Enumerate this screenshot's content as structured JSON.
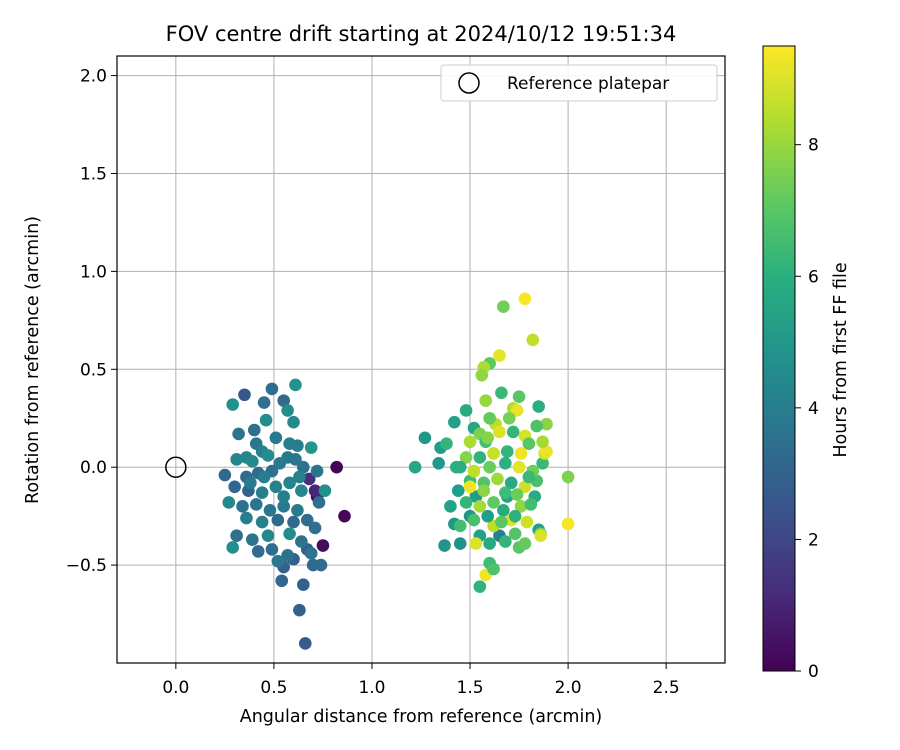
{
  "chart_data": {
    "type": "scatter",
    "title": "FOV centre drift starting at 2024/10/12 19:51:34",
    "xlabel": "Angular distance from reference (arcmin)",
    "ylabel": "Rotation from reference (arcmin)",
    "xlim": [
      -0.3,
      2.8
    ],
    "ylim": [
      -1.0,
      2.1
    ],
    "xticks": [
      "0.0",
      "0.5",
      "1.0",
      "1.5",
      "2.0",
      "2.5"
    ],
    "yticks": [
      "−0.5",
      "0.0",
      "0.5",
      "1.0",
      "1.5",
      "2.0"
    ],
    "grid": true,
    "legend": {
      "label": "Reference platepar",
      "placement": "top-right"
    },
    "reference_point": {
      "x": 0.0,
      "y": 0.0
    },
    "colorbar": {
      "label": "Hours from first FF file",
      "range": [
        0,
        9.5
      ],
      "ticks": [
        "0",
        "2",
        "4",
        "6",
        "8"
      ],
      "colormap": "viridis"
    },
    "points": [
      {
        "x": 0.82,
        "y": 0.0,
        "t": 0.1
      },
      {
        "x": 0.86,
        "y": -0.25,
        "t": 0.2
      },
      {
        "x": 0.75,
        "y": -0.4,
        "t": 0.3
      },
      {
        "x": 0.72,
        "y": -0.15,
        "t": 0.4
      },
      {
        "x": 0.71,
        "y": -0.12,
        "t": 1.0
      },
      {
        "x": 0.68,
        "y": -0.06,
        "t": 1.3
      },
      {
        "x": 0.66,
        "y": -0.9,
        "t": 2.7
      },
      {
        "x": 0.63,
        "y": -0.73,
        "t": 2.9
      },
      {
        "x": 0.65,
        "y": -0.6,
        "t": 3.0
      },
      {
        "x": 0.54,
        "y": -0.58,
        "t": 3.1
      },
      {
        "x": 0.55,
        "y": -0.51,
        "t": 3.0
      },
      {
        "x": 0.6,
        "y": -0.47,
        "t": 2.9
      },
      {
        "x": 0.67,
        "y": -0.42,
        "t": 2.8
      },
      {
        "x": 0.7,
        "y": -0.5,
        "t": 3.2
      },
      {
        "x": 0.74,
        "y": -0.5,
        "t": 3.3
      },
      {
        "x": 0.71,
        "y": -0.31,
        "t": 3.4
      },
      {
        "x": 0.73,
        "y": -0.18,
        "t": 3.5
      },
      {
        "x": 0.72,
        "y": -0.02,
        "t": 3.6
      },
      {
        "x": 0.76,
        "y": -0.12,
        "t": 4.8
      },
      {
        "x": 0.69,
        "y": 0.1,
        "t": 5.0
      },
      {
        "x": 0.61,
        "y": 0.42,
        "t": 4.9
      },
      {
        "x": 0.55,
        "y": 0.34,
        "t": 3.3
      },
      {
        "x": 0.49,
        "y": 0.4,
        "t": 3.4
      },
      {
        "x": 0.45,
        "y": 0.33,
        "t": 3.5
      },
      {
        "x": 0.35,
        "y": 0.37,
        "t": 2.6
      },
      {
        "x": 0.29,
        "y": 0.32,
        "t": 4.8
      },
      {
        "x": 0.57,
        "y": 0.29,
        "t": 4.6
      },
      {
        "x": 0.6,
        "y": 0.23,
        "t": 4.5
      },
      {
        "x": 0.46,
        "y": 0.24,
        "t": 4.6
      },
      {
        "x": 0.4,
        "y": 0.19,
        "t": 3.5
      },
      {
        "x": 0.32,
        "y": 0.17,
        "t": 3.6
      },
      {
        "x": 0.41,
        "y": 0.12,
        "t": 3.7
      },
      {
        "x": 0.51,
        "y": 0.15,
        "t": 3.8
      },
      {
        "x": 0.58,
        "y": 0.12,
        "t": 4.0
      },
      {
        "x": 0.62,
        "y": 0.11,
        "t": 4.1
      },
      {
        "x": 0.44,
        "y": 0.08,
        "t": 4.2
      },
      {
        "x": 0.36,
        "y": 0.05,
        "t": 4.3
      },
      {
        "x": 0.31,
        "y": 0.04,
        "t": 4.4
      },
      {
        "x": 0.39,
        "y": 0.03,
        "t": 4.5
      },
      {
        "x": 0.47,
        "y": 0.06,
        "t": 4.6
      },
      {
        "x": 0.53,
        "y": 0.02,
        "t": 3.9
      },
      {
        "x": 0.57,
        "y": 0.05,
        "t": 3.8
      },
      {
        "x": 0.61,
        "y": 0.04,
        "t": 3.7
      },
      {
        "x": 0.65,
        "y": 0.0,
        "t": 3.6
      },
      {
        "x": 0.49,
        "y": -0.02,
        "t": 3.5
      },
      {
        "x": 0.42,
        "y": -0.03,
        "t": 3.4
      },
      {
        "x": 0.36,
        "y": -0.05,
        "t": 3.3
      },
      {
        "x": 0.25,
        "y": -0.04,
        "t": 3.2
      },
      {
        "x": 0.3,
        "y": -0.1,
        "t": 3.1
      },
      {
        "x": 0.37,
        "y": -0.12,
        "t": 3.0
      },
      {
        "x": 0.44,
        "y": -0.13,
        "t": 4.1
      },
      {
        "x": 0.51,
        "y": -0.1,
        "t": 4.2
      },
      {
        "x": 0.58,
        "y": -0.08,
        "t": 4.3
      },
      {
        "x": 0.64,
        "y": -0.12,
        "t": 4.4
      },
      {
        "x": 0.27,
        "y": -0.18,
        "t": 4.5
      },
      {
        "x": 0.34,
        "y": -0.2,
        "t": 3.5
      },
      {
        "x": 0.41,
        "y": -0.19,
        "t": 3.6
      },
      {
        "x": 0.48,
        "y": -0.22,
        "t": 3.7
      },
      {
        "x": 0.55,
        "y": -0.2,
        "t": 3.8
      },
      {
        "x": 0.62,
        "y": -0.22,
        "t": 3.9
      },
      {
        "x": 0.36,
        "y": -0.26,
        "t": 4.0
      },
      {
        "x": 0.44,
        "y": -0.28,
        "t": 4.1
      },
      {
        "x": 0.52,
        "y": -0.27,
        "t": 3.2
      },
      {
        "x": 0.6,
        "y": -0.28,
        "t": 3.3
      },
      {
        "x": 0.67,
        "y": -0.27,
        "t": 3.4
      },
      {
        "x": 0.31,
        "y": -0.35,
        "t": 3.5
      },
      {
        "x": 0.39,
        "y": -0.37,
        "t": 3.6
      },
      {
        "x": 0.47,
        "y": -0.35,
        "t": 4.5
      },
      {
        "x": 0.58,
        "y": -0.34,
        "t": 4.6
      },
      {
        "x": 0.29,
        "y": -0.41,
        "t": 4.7
      },
      {
        "x": 0.42,
        "y": -0.43,
        "t": 3.3
      },
      {
        "x": 0.49,
        "y": -0.42,
        "t": 3.4
      },
      {
        "x": 0.57,
        "y": -0.45,
        "t": 3.5
      },
      {
        "x": 0.64,
        "y": -0.38,
        "t": 3.6
      },
      {
        "x": 0.69,
        "y": -0.44,
        "t": 3.7
      },
      {
        "x": 0.52,
        "y": -0.48,
        "t": 3.8
      },
      {
        "x": 0.38,
        "y": -0.08,
        "t": 3.9
      },
      {
        "x": 0.45,
        "y": -0.05,
        "t": 4.0
      },
      {
        "x": 0.55,
        "y": -0.15,
        "t": 4.1
      },
      {
        "x": 0.63,
        "y": -0.05,
        "t": 4.2
      },
      {
        "x": 1.22,
        "y": 0.0,
        "t": 5.6
      },
      {
        "x": 1.27,
        "y": 0.15,
        "t": 5.0
      },
      {
        "x": 1.35,
        "y": 0.1,
        "t": 5.2
      },
      {
        "x": 1.38,
        "y": 0.12,
        "t": 6.2
      },
      {
        "x": 1.42,
        "y": 0.23,
        "t": 5.4
      },
      {
        "x": 1.48,
        "y": 0.29,
        "t": 5.8
      },
      {
        "x": 1.34,
        "y": 0.02,
        "t": 5.1
      },
      {
        "x": 1.43,
        "y": 0.0,
        "t": 6.0
      },
      {
        "x": 1.37,
        "y": -0.4,
        "t": 4.9
      },
      {
        "x": 1.45,
        "y": -0.39,
        "t": 4.8
      },
      {
        "x": 1.42,
        "y": -0.29,
        "t": 5.0
      },
      {
        "x": 1.4,
        "y": -0.2,
        "t": 5.5
      },
      {
        "x": 1.44,
        "y": -0.12,
        "t": 5.3
      },
      {
        "x": 1.5,
        "y": -0.07,
        "t": 6.5
      },
      {
        "x": 1.53,
        "y": -0.15,
        "t": 5.2
      },
      {
        "x": 1.5,
        "y": -0.25,
        "t": 5.0
      },
      {
        "x": 1.55,
        "y": -0.35,
        "t": 5.4
      },
      {
        "x": 1.55,
        "y": -0.61,
        "t": 6.1
      },
      {
        "x": 1.58,
        "y": -0.55,
        "t": 9.3
      },
      {
        "x": 1.6,
        "y": -0.49,
        "t": 6.5
      },
      {
        "x": 1.62,
        "y": -0.52,
        "t": 6.8
      },
      {
        "x": 1.6,
        "y": -0.39,
        "t": 5.7
      },
      {
        "x": 1.65,
        "y": -0.35,
        "t": 4.2
      },
      {
        "x": 1.62,
        "y": -0.3,
        "t": 8.5
      },
      {
        "x": 1.67,
        "y": -0.22,
        "t": 5.8
      },
      {
        "x": 1.71,
        "y": -0.27,
        "t": 9.0
      },
      {
        "x": 1.73,
        "y": -0.34,
        "t": 6.9
      },
      {
        "x": 1.75,
        "y": -0.41,
        "t": 7.0
      },
      {
        "x": 1.78,
        "y": -0.39,
        "t": 7.2
      },
      {
        "x": 1.79,
        "y": -0.28,
        "t": 8.8
      },
      {
        "x": 1.85,
        "y": -0.32,
        "t": 5.4
      },
      {
        "x": 1.86,
        "y": -0.34,
        "t": 7.5
      },
      {
        "x": 1.86,
        "y": -0.35,
        "t": 9.0
      },
      {
        "x": 2.0,
        "y": -0.29,
        "t": 9.4
      },
      {
        "x": 2.0,
        "y": -0.05,
        "t": 7.6
      },
      {
        "x": 1.83,
        "y": -0.15,
        "t": 5.8
      },
      {
        "x": 1.84,
        "y": -0.07,
        "t": 6.7
      },
      {
        "x": 1.87,
        "y": 0.02,
        "t": 6.4
      },
      {
        "x": 1.88,
        "y": 0.07,
        "t": 8.9
      },
      {
        "x": 1.89,
        "y": 0.08,
        "t": 9.2
      },
      {
        "x": 1.87,
        "y": 0.13,
        "t": 8.2
      },
      {
        "x": 1.85,
        "y": 0.31,
        "t": 5.9
      },
      {
        "x": 1.89,
        "y": 0.22,
        "t": 7.8
      },
      {
        "x": 1.82,
        "y": 0.65,
        "t": 8.6
      },
      {
        "x": 1.78,
        "y": 0.86,
        "t": 9.4
      },
      {
        "x": 1.67,
        "y": 0.82,
        "t": 7.4
      },
      {
        "x": 1.65,
        "y": 0.57,
        "t": 9.1
      },
      {
        "x": 1.6,
        "y": 0.53,
        "t": 7.1
      },
      {
        "x": 1.57,
        "y": 0.51,
        "t": 8.3
      },
      {
        "x": 1.56,
        "y": 0.47,
        "t": 7.9
      },
      {
        "x": 1.58,
        "y": 0.34,
        "t": 8.0
      },
      {
        "x": 1.75,
        "y": 0.36,
        "t": 7.0
      },
      {
        "x": 1.72,
        "y": 0.3,
        "t": 8.4
      },
      {
        "x": 1.74,
        "y": 0.29,
        "t": 9.2
      },
      {
        "x": 1.7,
        "y": 0.25,
        "t": 7.5
      },
      {
        "x": 1.63,
        "y": 0.22,
        "t": 8.5
      },
      {
        "x": 1.6,
        "y": 0.25,
        "t": 7.2
      },
      {
        "x": 1.52,
        "y": 0.2,
        "t": 5.6
      },
      {
        "x": 1.55,
        "y": 0.17,
        "t": 7.6
      },
      {
        "x": 1.5,
        "y": 0.13,
        "t": 8.3
      },
      {
        "x": 1.58,
        "y": 0.13,
        "t": 6.6
      },
      {
        "x": 1.65,
        "y": 0.18,
        "t": 9.0
      },
      {
        "x": 1.72,
        "y": 0.18,
        "t": 6.3
      },
      {
        "x": 1.78,
        "y": 0.16,
        "t": 8.9
      },
      {
        "x": 1.8,
        "y": 0.12,
        "t": 7.0
      },
      {
        "x": 1.76,
        "y": 0.07,
        "t": 9.3
      },
      {
        "x": 1.69,
        "y": 0.08,
        "t": 6.2
      },
      {
        "x": 1.62,
        "y": 0.07,
        "t": 8.7
      },
      {
        "x": 1.55,
        "y": 0.05,
        "t": 6.1
      },
      {
        "x": 1.48,
        "y": 0.05,
        "t": 7.7
      },
      {
        "x": 1.45,
        "y": 0.0,
        "t": 5.9
      },
      {
        "x": 1.52,
        "y": -0.02,
        "t": 8.6
      },
      {
        "x": 1.6,
        "y": 0.0,
        "t": 7.3
      },
      {
        "x": 1.68,
        "y": 0.02,
        "t": 6.0
      },
      {
        "x": 1.75,
        "y": 0.0,
        "t": 9.1
      },
      {
        "x": 1.82,
        "y": -0.02,
        "t": 7.4
      },
      {
        "x": 1.5,
        "y": -0.1,
        "t": 9.3
      },
      {
        "x": 1.57,
        "y": -0.08,
        "t": 6.9
      },
      {
        "x": 1.64,
        "y": -0.06,
        "t": 8.1
      },
      {
        "x": 1.71,
        "y": -0.08,
        "t": 5.7
      },
      {
        "x": 1.78,
        "y": -0.1,
        "t": 8.8
      },
      {
        "x": 1.8,
        "y": -0.05,
        "t": 6.4
      },
      {
        "x": 1.48,
        "y": -0.18,
        "t": 6.3
      },
      {
        "x": 1.55,
        "y": -0.2,
        "t": 8.2
      },
      {
        "x": 1.62,
        "y": -0.18,
        "t": 7.1
      },
      {
        "x": 1.69,
        "y": -0.15,
        "t": 5.5
      },
      {
        "x": 1.76,
        "y": -0.2,
        "t": 7.9
      },
      {
        "x": 1.52,
        "y": -0.27,
        "t": 6.7
      },
      {
        "x": 1.59,
        "y": -0.25,
        "t": 5.3
      },
      {
        "x": 1.66,
        "y": -0.28,
        "t": 7.0
      },
      {
        "x": 1.73,
        "y": -0.25,
        "t": 6.0
      },
      {
        "x": 1.57,
        "y": -0.12,
        "t": 7.8
      },
      {
        "x": 1.68,
        "y": -0.13,
        "t": 6.5
      },
      {
        "x": 1.74,
        "y": -0.14,
        "t": 7.3
      },
      {
        "x": 1.45,
        "y": -0.3,
        "t": 6.6
      },
      {
        "x": 1.53,
        "y": -0.39,
        "t": 9.0
      },
      {
        "x": 1.68,
        "y": -0.38,
        "t": 6.2
      },
      {
        "x": 1.81,
        "y": -0.19,
        "t": 6.6
      },
      {
        "x": 1.84,
        "y": 0.21,
        "t": 6.8
      },
      {
        "x": 1.66,
        "y": 0.38,
        "t": 6.4
      },
      {
        "x": 1.59,
        "y": 0.15,
        "t": 7.7
      }
    ]
  }
}
